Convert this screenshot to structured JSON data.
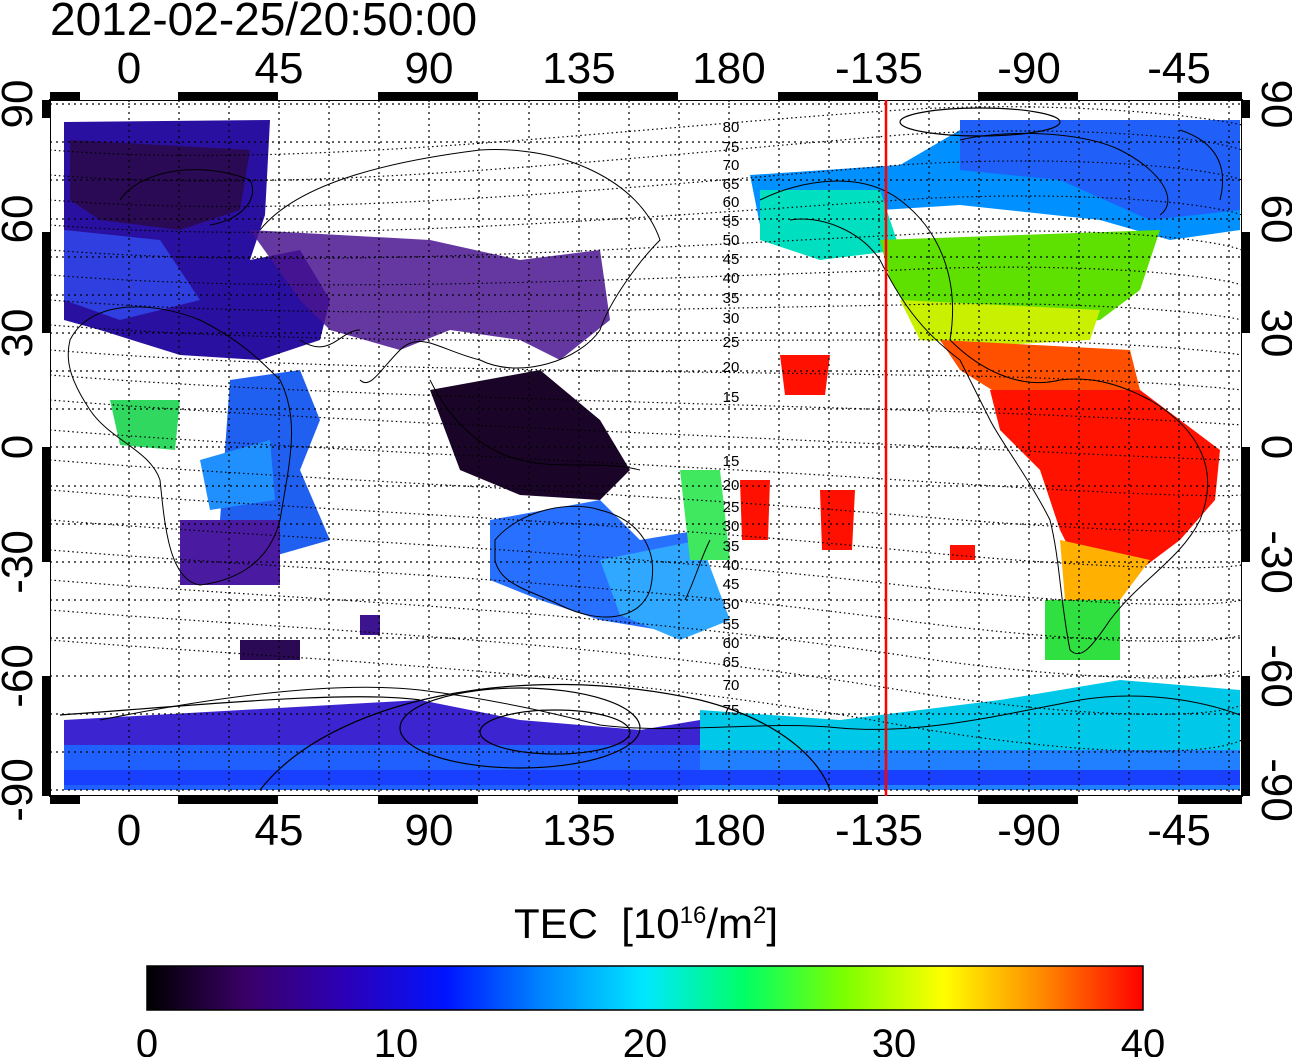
{
  "title": "2012-02-25/20:50:00",
  "map": {
    "top_lon_labels": [
      "0",
      "45",
      "90",
      "135",
      "180",
      "-135",
      "-90",
      "-45"
    ],
    "bottom_lon_labels": [
      "0",
      "45",
      "90",
      "135",
      "180",
      "-135",
      "-90",
      "-45"
    ],
    "left_lat_labels": [
      "90",
      "60",
      "30",
      "0",
      "-30",
      "-60",
      "-90"
    ],
    "right_lat_labels": [
      "90",
      "60",
      "30",
      "0",
      "-30",
      "-60",
      "-90"
    ],
    "contour_labels_north": [
      "80",
      "75",
      "70",
      "65",
      "60",
      "55",
      "50",
      "45",
      "40",
      "35",
      "30",
      "25",
      "20",
      "15"
    ],
    "contour_labels_south": [
      "15",
      "20",
      "25",
      "30",
      "35",
      "40",
      "45",
      "50",
      "55",
      "60",
      "65",
      "70",
      "75"
    ],
    "marker_longitude": -135,
    "marker_color": "#ff0000"
  },
  "colorbar": {
    "title_main": "TEC",
    "title_unit_prefix": "[10",
    "title_unit_exp": "16",
    "title_unit_mid": "/m",
    "title_unit_exp2": "2",
    "title_unit_suffix": "]",
    "tick_labels": [
      "0",
      "10",
      "20",
      "30",
      "40"
    ],
    "min": 0,
    "max": 40,
    "colors": [
      "#000000",
      "#3a0068",
      "#2c00b8",
      "#0014ff",
      "#0088ff",
      "#00e8ff",
      "#00ff66",
      "#7cff00",
      "#ffff00",
      "#ff8800",
      "#ff0000"
    ]
  }
}
